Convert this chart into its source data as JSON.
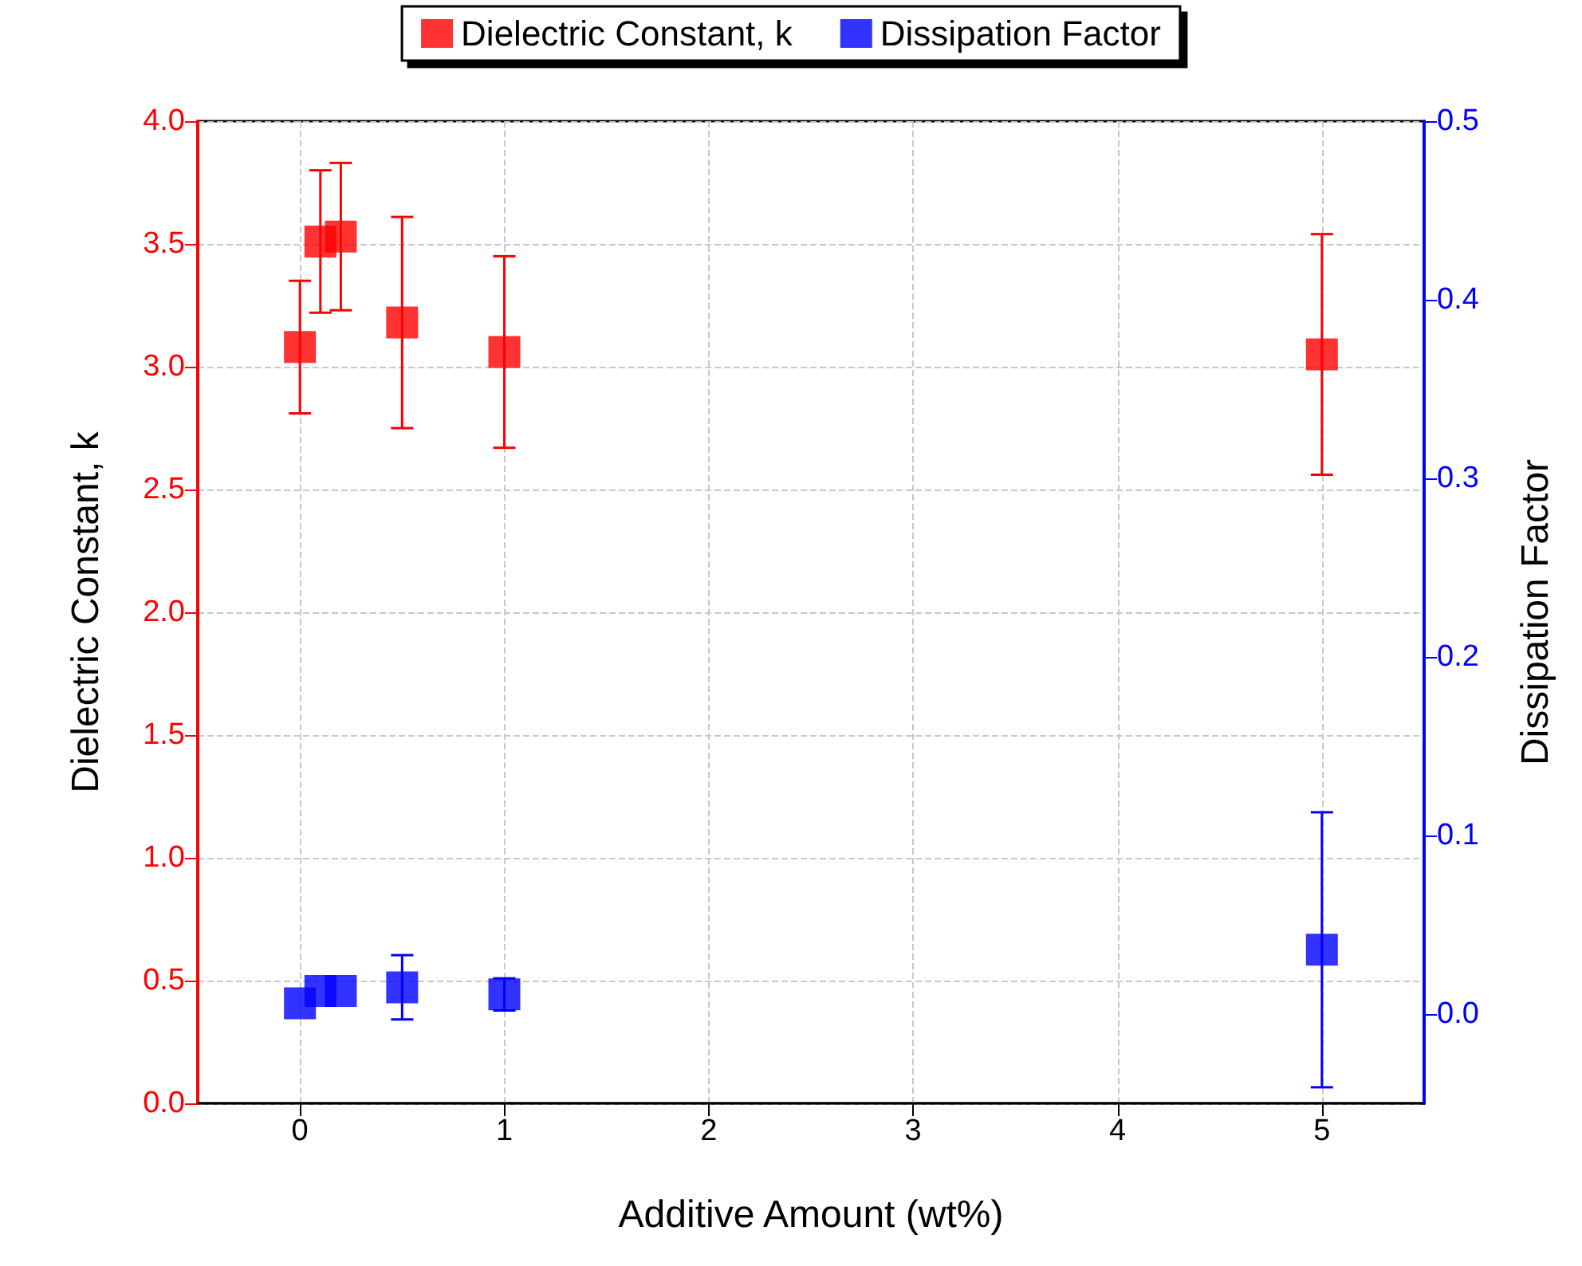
{
  "chart_data": {
    "type": "scatter",
    "xlabel": "Additive Amount (wt%)",
    "ylabel": "Dielectric Constant, k",
    "y2label": "Dissipation Factor",
    "x": [
      0,
      0.1,
      0.2,
      0.5,
      1,
      5
    ],
    "series": [
      {
        "name": "Dielectric Constant, k",
        "color": "#ff0000",
        "values": [
          3.08,
          3.51,
          3.53,
          3.18,
          3.06,
          3.05
        ],
        "errors": [
          0.27,
          0.29,
          0.3,
          0.43,
          0.39,
          0.49
        ]
      },
      {
        "name": "Dissipation Factor",
        "color": "#0000ff",
        "axis": "y2",
        "values": [
          0.006,
          0.013,
          0.013,
          0.015,
          0.011,
          0.036
        ],
        "errors": [
          null,
          null,
          null,
          0.018,
          0.009,
          0.077
        ]
      }
    ],
    "xlim": [
      -0.5,
      5.5
    ],
    "xticks": [
      0,
      1,
      2,
      3,
      4,
      5
    ],
    "ylim": [
      0,
      4
    ],
    "yticks": [
      {
        "value": 0,
        "label": "0.0"
      },
      {
        "value": 0.5,
        "label": "0.5"
      },
      {
        "value": 1,
        "label": "1.0"
      },
      {
        "value": 1.5,
        "label": "1.5"
      },
      {
        "value": 2,
        "label": "2.0"
      },
      {
        "value": 2.5,
        "label": "2.5"
      },
      {
        "value": 3,
        "label": "3.0"
      },
      {
        "value": 3.5,
        "label": "3.5"
      },
      {
        "value": 4,
        "label": "4.0"
      }
    ],
    "y2lim": [
      -0.05,
      0.5
    ],
    "y2ticks": [
      {
        "value": 0,
        "label": "0.0"
      },
      {
        "value": 0.1,
        "label": "0.1"
      },
      {
        "value": 0.2,
        "label": "0.2"
      },
      {
        "value": 0.3,
        "label": "0.3"
      },
      {
        "value": 0.4,
        "label": "0.4"
      },
      {
        "value": 0.5,
        "label": "0.5"
      }
    ],
    "grid": true,
    "legend": "top",
    "marker": "square"
  }
}
